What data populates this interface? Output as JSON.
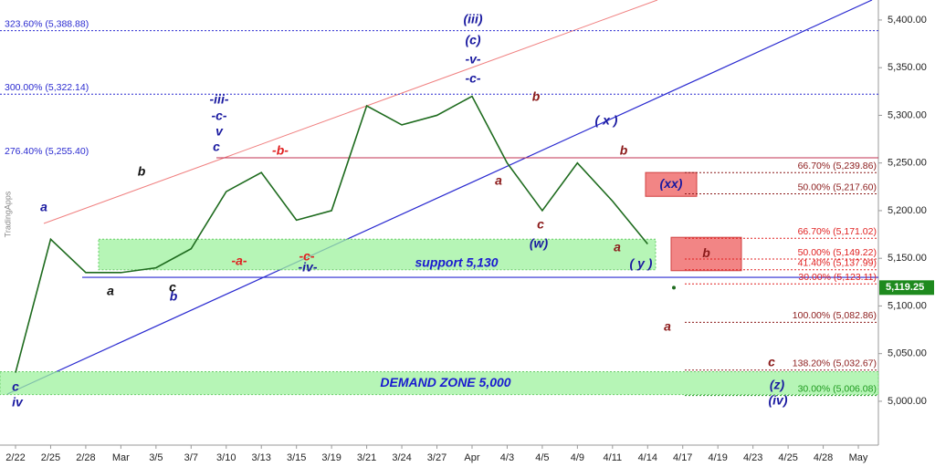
{
  "chart_data": {
    "type": "line",
    "color": "#1e6b1e",
    "categories": [
      "2/22",
      "2/25",
      "2/28",
      "Mar",
      "3/5",
      "3/7",
      "3/10",
      "3/13",
      "3/15",
      "3/19",
      "3/21",
      "3/24",
      "3/27",
      "Apr",
      "4/3",
      "4/5",
      "4/9",
      "4/11",
      "4/14",
      "4/17",
      "4/19",
      "4/23",
      "4/25",
      "4/28",
      "May"
    ],
    "values": [
      5030,
      5170,
      5135,
      5135,
      5140,
      5160,
      5220,
      5240,
      5190,
      5200,
      5310,
      5290,
      5300,
      5320,
      5250,
      5200,
      5250,
      5210,
      5165,
      null,
      null,
      null,
      null,
      null,
      null
    ],
    "ylim": [
      4954,
      5421
    ],
    "yticks": [
      {
        "value": 5000,
        "label": "5,000.00"
      },
      {
        "value": 5050,
        "label": "5,050.00"
      },
      {
        "value": 5100,
        "label": "5,100.00"
      },
      {
        "value": 5150,
        "label": "5,150.00"
      },
      {
        "value": 5200,
        "label": "5,200.00"
      },
      {
        "value": 5250,
        "label": "5,250.00"
      },
      {
        "value": 5300,
        "label": "5,300.00"
      },
      {
        "value": 5350,
        "label": "5,350.00"
      },
      {
        "value": 5400,
        "label": "5,400.00"
      }
    ],
    "last_price": {
      "value": 5119.25,
      "label": "5,119.25"
    },
    "watermark": "TradingApps",
    "support_line": 5130,
    "levels": [
      {
        "label": "323.60% (5,388.88)",
        "price": 5388.88,
        "color": "#2a2ad0"
      },
      {
        "label": "300.00% (5,322.14)",
        "price": 5322.14,
        "color": "#2a2ad0"
      },
      {
        "label": "276.40% (5,255.40)",
        "price": 5255.4,
        "color": "#2a2ad0"
      },
      {
        "label": "66.70% (5,239.86)",
        "price": 5239.86,
        "color": "#8b1a1a"
      },
      {
        "label": "50.00% (5,217.60)",
        "price": 5217.6,
        "color": "#8b1a1a"
      },
      {
        "label": "66.70% (5,171.02)",
        "price": 5171.02,
        "color": "#e02020"
      },
      {
        "label": "50.00% (5,149.22)",
        "price": 5149.22,
        "color": "#e02020"
      },
      {
        "label": "41.40% (5,137.99)",
        "price": 5137.99,
        "color": "#e02020"
      },
      {
        "label": "30.00% (5,123.11)",
        "price": 5123.11,
        "color": "#e02020"
      },
      {
        "label": "100.00% (5,082.86)",
        "price": 5082.86,
        "color": "#8b1a1a"
      },
      {
        "label": "138.20% (5,032.67)",
        "price": 5032.67,
        "color": "#8b1a1a"
      },
      {
        "label": "30.00% (5,006.08)",
        "price": 5006.08,
        "color": "#1e9a1e"
      }
    ],
    "zones": [
      {
        "label": "support 5,130",
        "low": 5138,
        "high": 5170
      },
      {
        "label": "DEMAND ZONE 5,000",
        "low": 5007,
        "high": 5031
      }
    ],
    "boxes": [
      {
        "label": "(xx)",
        "low": 5215,
        "high": 5240
      },
      {
        "label": "b",
        "low": 5137,
        "high": 5172
      }
    ],
    "annotations": [
      {
        "text": "(iii)",
        "color": "#1a1aa0"
      },
      {
        "text": "(c)",
        "color": "#1a1aa0"
      },
      {
        "text": "-v-",
        "color": "#1a1aa0"
      },
      {
        "text": "-c-",
        "color": "#1a1aa0"
      },
      {
        "text": "-iii-",
        "color": "#1a1aa0"
      },
      {
        "text": "-c-",
        "color": "#1a1aa0"
      },
      {
        "text": "v",
        "color": "#1a1aa0"
      },
      {
        "text": "c",
        "color": "#1a1aa0"
      },
      {
        "text": "( x )",
        "color": "#1a1aa0"
      },
      {
        "text": "(w)",
        "color": "#1a1aa0"
      },
      {
        "text": "( y )",
        "color": "#1a1aa0"
      },
      {
        "text": "(z)",
        "color": "#1a1aa0"
      },
      {
        "text": "(iv)",
        "color": "#1a1aa0"
      },
      {
        "text": "c",
        "color": "#1a1aa0"
      },
      {
        "text": "iv",
        "color": "#1a1aa0"
      },
      {
        "text": "a",
        "color": "#1a1aa0"
      },
      {
        "text": "b",
        "color": "#1a1aa0"
      },
      {
        "text": "-iv-",
        "color": "#1a1aa0"
      },
      {
        "text": "b",
        "color": "#111111"
      },
      {
        "text": "a",
        "color": "#111111"
      },
      {
        "text": "c",
        "color": "#111111"
      },
      {
        "text": "-b-",
        "color": "#e02020"
      },
      {
        "text": "-a-",
        "color": "#e02020"
      },
      {
        "text": "-c-",
        "color": "#e02020"
      },
      {
        "text": "b",
        "color": "#8b1a1a"
      },
      {
        "text": "a",
        "color": "#8b1a1a"
      },
      {
        "text": "c",
        "color": "#8b1a1a"
      },
      {
        "text": "b",
        "color": "#8b1a1a"
      },
      {
        "text": "a",
        "color": "#8b1a1a"
      },
      {
        "text": "a",
        "color": "#8b1a1a"
      },
      {
        "text": "c",
        "color": "#8b1a1a"
      }
    ]
  }
}
